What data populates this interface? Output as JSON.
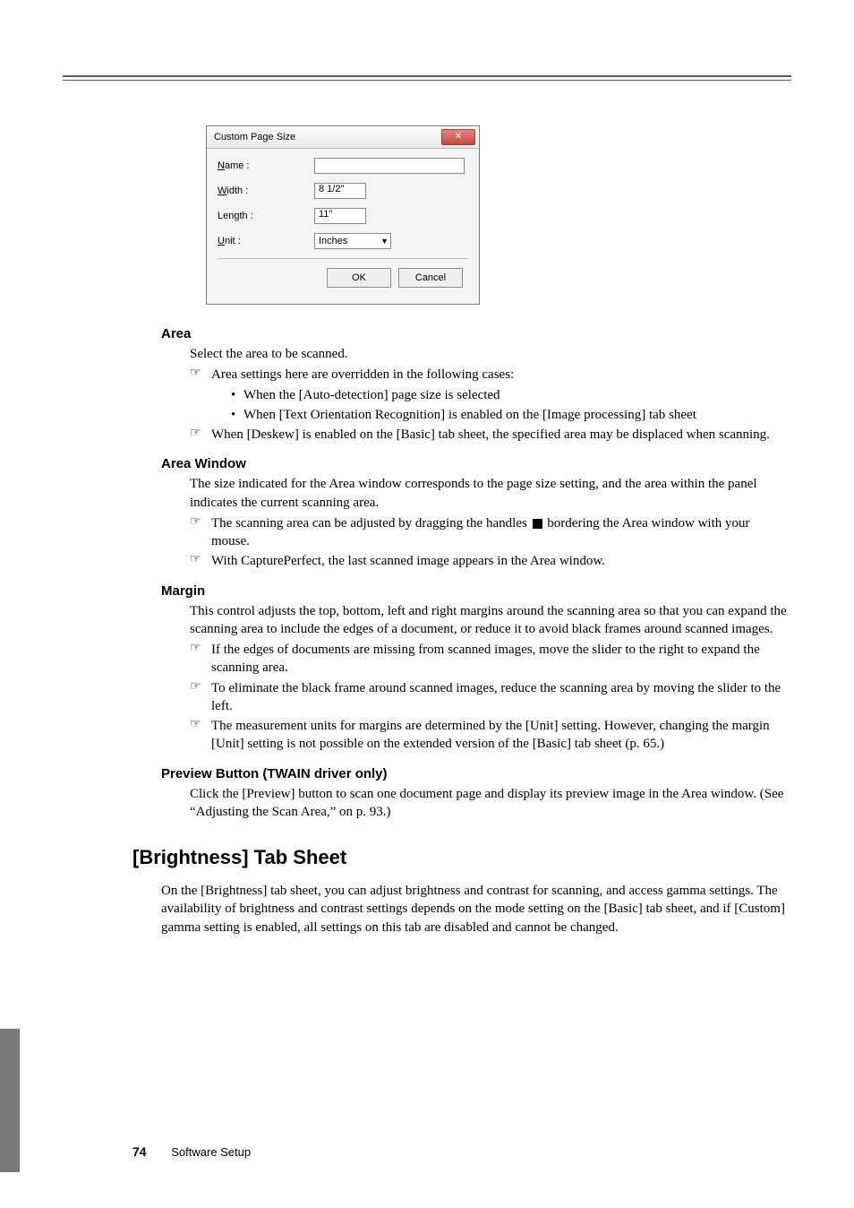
{
  "colors": {
    "rule": "#5a5a6e",
    "side_tab": "#7a7a7a",
    "dialog_bg": "#f4f4f4",
    "close_btn_top": "#e28780",
    "close_btn_bottom": "#c54840"
  },
  "dialog": {
    "title": "Custom Page Size",
    "close_glyph": "✕",
    "rows": {
      "name": {
        "label_pre": "N",
        "label_rest": "ame :",
        "value": ""
      },
      "width": {
        "label_pre": "W",
        "label_rest": "idth :",
        "value": "8 1/2\""
      },
      "length": {
        "label_plain": "Length :",
        "value": "11\""
      },
      "unit": {
        "label_pre": "U",
        "label_rest": "nit :",
        "value": "Inches"
      }
    },
    "buttons": {
      "ok": "OK",
      "cancel": "Cancel"
    }
  },
  "sections": {
    "area": {
      "heading": "Area",
      "intro": "Select the area to be scanned.",
      "note_override": "Area settings here are overridden in the following cases:",
      "sub1": "When the [Auto-detection] page size is selected",
      "sub2": "When [Text Orientation Recognition] is enabled on the [Image processing] tab sheet",
      "note_deskew": "When [Deskew] is enabled on the [Basic] tab sheet, the specified area may be displaced when scanning."
    },
    "area_window": {
      "heading": "Area Window",
      "p1": "The size indicated for the Area window corresponds to the page size setting, and the area within the panel indicates the current scanning area.",
      "n1a": "The scanning area can be adjusted by dragging the handles ",
      "n1b": " bordering the Area window with your mouse.",
      "n2": "With CapturePerfect, the last scanned image appears in the Area window."
    },
    "margin": {
      "heading": "Margin",
      "p1": "This control adjusts the top, bottom, left and right margins around the scanning area so that you can expand the scanning area to include the edges of a document, or reduce it to avoid black frames around scanned images.",
      "n1": "If the edges of documents are missing from scanned images, move the slider to the right to expand the scanning area.",
      "n2": "To eliminate the black frame around scanned images, reduce the scanning area by moving the slider to the left.",
      "n3": "The measurement units for margins are determined by the [Unit] setting. However, changing the margin [Unit] setting is not possible on the extended version of the [Basic] tab sheet (p. 65.)"
    },
    "preview": {
      "heading": "Preview Button (TWAIN driver only)",
      "p1": "Click the [Preview] button to scan one document page and display its preview image in the Area window. (See “Adjusting the Scan Area,” on p. 93.)"
    },
    "brightness": {
      "heading": "[Brightness] Tab Sheet",
      "p1": "On the [Brightness] tab sheet, you can adjust brightness and contrast for scanning, and access gamma settings. The availability of brightness and contrast settings depends on the mode setting on the [Basic] tab sheet, and if [Custom] gamma setting is enabled, all settings on this tab are disabled and cannot be changed."
    }
  },
  "footer": {
    "page_no": "74",
    "section": "Software Setup"
  }
}
